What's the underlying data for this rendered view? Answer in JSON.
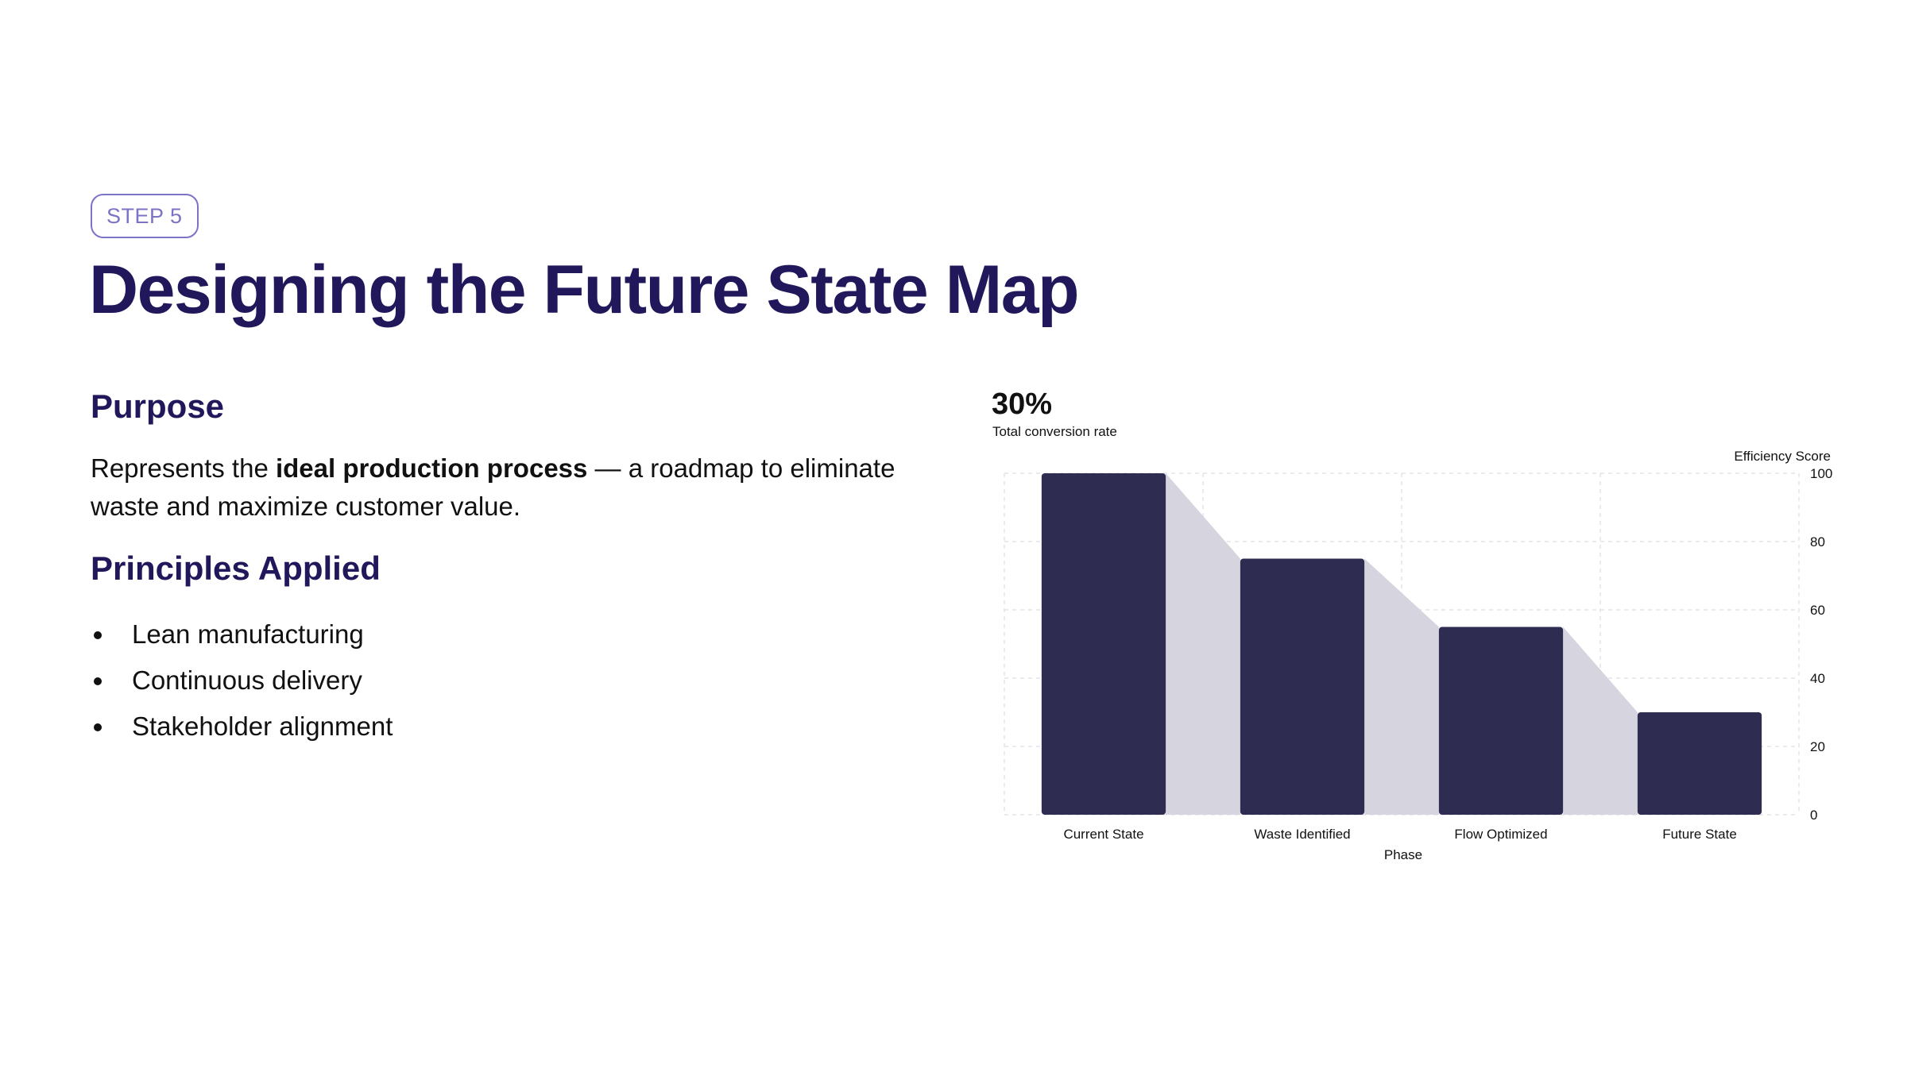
{
  "slide": {
    "step_label": "STEP 5",
    "title": "Designing the Future State Map"
  },
  "purpose": {
    "heading": "Purpose",
    "text_before": "Represents the ",
    "text_bold": "ideal production process",
    "text_after": " — a roadmap to eliminate waste and maximize customer value."
  },
  "principles": {
    "heading": "Principles Applied",
    "items": [
      "Lean manufacturing",
      "Continuous delivery",
      "Stakeholder alignment"
    ]
  },
  "kpi": {
    "value": "30%",
    "label": "Total conversion rate"
  },
  "colors": {
    "title": "#21185c",
    "badge": "#7b73c4",
    "bar": "#2f2c51",
    "funnel_fill": "#d6d5df",
    "grid": "#e4e4ea"
  },
  "chart_data": {
    "type": "bar",
    "categories": [
      "Current State",
      "Waste Identified",
      "Flow Optimized",
      "Future State"
    ],
    "values": [
      100,
      75,
      55,
      30
    ],
    "xlabel": "Phase",
    "ylabel": "Efficiency Score",
    "ylim": [
      0,
      100
    ],
    "yticks": [
      0,
      20,
      40,
      60,
      80,
      100
    ],
    "y_axis_side": "right",
    "grid": true,
    "connectors": true
  }
}
